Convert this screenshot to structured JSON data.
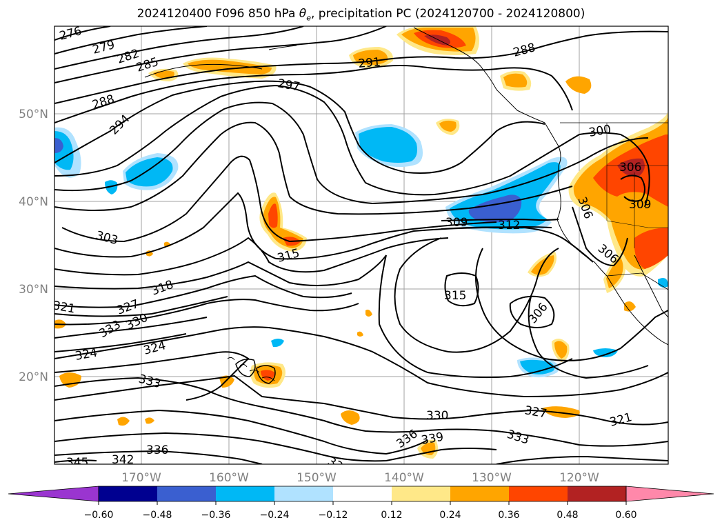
{
  "title": {
    "prefix": "2024120400 F096 850 hPa ",
    "theta": "θ",
    "theta_sub": "e",
    "suffix": ", precipitation PC (2024120700 - 2024120800)"
  },
  "map": {
    "lat_labels": [
      "50°N",
      "40°N",
      "30°N",
      "20°N"
    ],
    "lon_labels": [
      "170°W",
      "160°W",
      "150°W",
      "140°W",
      "130°W",
      "120°W"
    ],
    "gridline_color": "#a0a0a0"
  },
  "contour_labels": [
    "276",
    "279",
    "282",
    "285",
    "288",
    "288",
    "291",
    "294",
    "297",
    "300",
    "303",
    "306",
    "306",
    "306",
    "306",
    "309",
    "309",
    "312",
    "315",
    "315",
    "318",
    "321",
    "321",
    "324",
    "324",
    "327",
    "327",
    "330",
    "330",
    "333",
    "333",
    "333",
    "336",
    "336",
    "339",
    "342",
    "345",
    "33"
  ],
  "colorbar": {
    "ticks": [
      "−0.60",
      "−0.48",
      "−0.36",
      "−0.24",
      "−0.12",
      "0.12",
      "0.24",
      "0.36",
      "0.48",
      "0.60"
    ],
    "colors": [
      "#9a35d0",
      "#000090",
      "#3a5fd0",
      "#00b8f5",
      "#b0e2ff",
      "#ffffff",
      "#ffe888",
      "#ffa500",
      "#ff4500",
      "#b22222",
      "#ff88aa"
    ]
  },
  "precip_colors": {
    "light_blue": "#b0e2ff",
    "blue": "#00b8f5",
    "mid_blue": "#3a5fd0",
    "dark_blue": "#000090",
    "yellow": "#ffe888",
    "orange": "#ffa500",
    "red_orange": "#ff4500",
    "dark_red": "#b22222"
  }
}
